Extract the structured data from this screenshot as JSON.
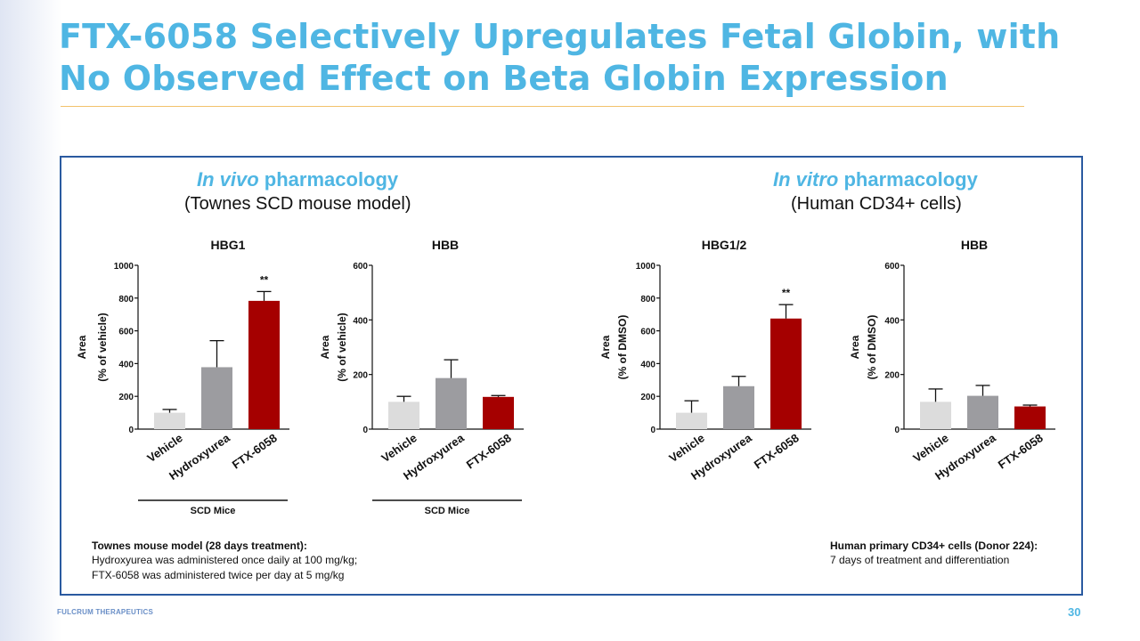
{
  "title_line1": "FTX-6058 Selectively Upregulates Fetal Globin, with",
  "title_line2": "No Observed Effect on Beta Globin Expression",
  "invivo": {
    "italic": "In vivo",
    "rest": " pharmacology",
    "subtitle": "(Townes SCD mouse model)"
  },
  "invitro": {
    "italic": "In vitro",
    "rest": " pharmacology",
    "subtitle": "(Human CD34+ cells)"
  },
  "footnotes": {
    "left_heading": "Townes mouse model (28 days treatment):",
    "left_line1": "Hydroxyurea was administered once daily at 100 mg/kg;",
    "left_line2": "FTX-6058 was administered twice per day at 5 mg/kg",
    "right_heading": "Human primary CD34+ cells (Donor 224):",
    "right_line1": "7 days of treatment and differentiation"
  },
  "brand": "FULCRUM THERAPEUTICS",
  "page_number": "30",
  "colors": {
    "vehicle": "#dcdcdc",
    "hydroxyurea": "#9c9ca0",
    "ftx": "#a50000",
    "title": "#4fb6e3",
    "border": "#2a5aa0"
  },
  "chart_data": [
    {
      "type": "bar",
      "title": "HBG1",
      "ylabel_line1": "Area",
      "ylabel_line2": "(% of vehicle)",
      "categories": [
        "Vehicle",
        "Hydroxyurea",
        "FTX-6058"
      ],
      "values": [
        100,
        378,
        783
      ],
      "errors": [
        20,
        162,
        57
      ],
      "ylim": [
        0,
        1000
      ],
      "yticks": [
        0,
        200,
        400,
        600,
        800,
        1000
      ],
      "annotations": [
        {
          "category": "FTX-6058",
          "text": "**"
        }
      ],
      "group_label": "SCD Mice"
    },
    {
      "type": "bar",
      "title": "HBB",
      "ylabel_line1": "Area",
      "ylabel_line2": "(% of vehicle)",
      "categories": [
        "Vehicle",
        "Hydroxyurea",
        "FTX-6058"
      ],
      "values": [
        100,
        187,
        118
      ],
      "errors": [
        20,
        67,
        5
      ],
      "ylim": [
        0,
        600
      ],
      "yticks": [
        0,
        200,
        400,
        600
      ],
      "annotations": [],
      "group_label": "SCD Mice"
    },
    {
      "type": "bar",
      "title": "HBG1/2",
      "ylabel_line1": "Area",
      "ylabel_line2": "(% of DMSO)",
      "categories": [
        "Vehicle",
        "Hydroxyurea",
        "FTX-6058"
      ],
      "values": [
        100,
        262,
        675
      ],
      "errors": [
        73,
        60,
        85
      ],
      "ylim": [
        0,
        1000
      ],
      "yticks": [
        0,
        200,
        400,
        600,
        800,
        1000
      ],
      "annotations": [
        {
          "category": "FTX-6058",
          "text": "**"
        }
      ],
      "group_label": ""
    },
    {
      "type": "bar",
      "title": "HBB",
      "ylabel_line1": "Area",
      "ylabel_line2": "(% of DMSO)",
      "categories": [
        "Vehicle",
        "Hydroxyurea",
        "FTX-6058"
      ],
      "values": [
        100,
        122,
        83
      ],
      "errors": [
        47,
        38,
        5
      ],
      "ylim": [
        0,
        600
      ],
      "yticks": [
        0,
        200,
        400,
        600
      ],
      "annotations": [],
      "group_label": ""
    }
  ]
}
